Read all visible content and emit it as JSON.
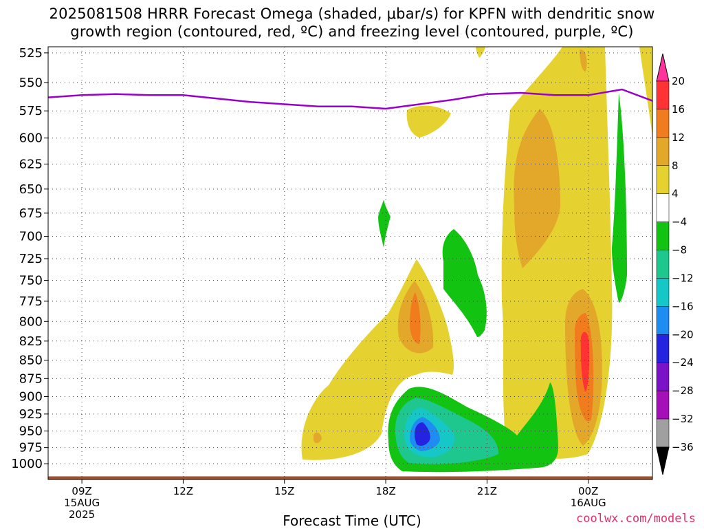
{
  "title_line1": "2025081508 HRRR Forecast Omega (shaded, μbar/s) for KPFN with dendritic snow",
  "title_line2": "growth region (contoured, red, ºC) and freezing level (contoured, purple, ºC)",
  "xlabel": "Forecast Time (UTC)",
  "credit": "coolwx.com/models",
  "chart_data": {
    "type": "heatmap",
    "title": "2025081508 HRRR Forecast Omega (shaded, μbar/s) for KPFN with dendritic snow growth region (contoured, red, ºC) and freezing level (contoured, purple, ºC)",
    "xlabel": "Forecast Time (UTC)",
    "ylabel": "",
    "y_axis_scale": "log-pressure (inverted)",
    "ylim": [
      1025,
      520
    ],
    "y_ticks": [
      525,
      550,
      575,
      600,
      625,
      650,
      675,
      700,
      725,
      750,
      775,
      800,
      825,
      850,
      875,
      900,
      925,
      950,
      975,
      1000
    ],
    "x_ticks": [
      {
        "hours": 1,
        "label": "09Z",
        "label2": "15AUG",
        "label3": "2025"
      },
      {
        "hours": 4,
        "label": "12Z",
        "label2": "",
        "label3": ""
      },
      {
        "hours": 7,
        "label": "15Z",
        "label2": "",
        "label3": ""
      },
      {
        "hours": 10,
        "label": "18Z",
        "label2": "",
        "label3": ""
      },
      {
        "hours": 13,
        "label": "21Z",
        "label2": "",
        "label3": ""
      },
      {
        "hours": 16,
        "label": "00Z",
        "label2": "16AUG",
        "label3": ""
      }
    ],
    "xlim_hours": [
      0,
      17.9
    ],
    "grid": true,
    "colorbar": {
      "levels": [
        "20",
        "16",
        "12",
        "8",
        "4",
        "−4",
        "−8",
        "−12",
        "−16",
        "−20",
        "−24",
        "−28",
        "−32",
        "−36"
      ],
      "colors": [
        "#ff3399",
        "#ff3333",
        "#f07c1e",
        "#e3a82a",
        "#e5d230",
        "#ffffff",
        "#12c312",
        "#1ec78e",
        "#16c7c7",
        "#1e8cf0",
        "#2424e0",
        "#7a12c8",
        "#a40fb8",
        "#a0a0a0",
        "#000000"
      ]
    },
    "omega_regions": [
      {
        "value": 4,
        "color": "#e5d230",
        "label": "yellow region, 16Z to 19Z near surface"
      },
      {
        "value": 12,
        "color": "#e3a82a",
        "label": "upper region 23Z"
      },
      {
        "value": 16,
        "color": "#ff3333",
        "label": "max near 00Z 850 mb"
      },
      {
        "value": -8,
        "color": "#12c312",
        "label": "green region 18Z-22Z near surface"
      },
      {
        "value": -24,
        "color": "#2424e0",
        "label": "min near 19Z 950 mb"
      }
    ],
    "series": [
      {
        "name": "freezing level",
        "color": "#9900cc",
        "points": [
          [
            0.0,
            563
          ],
          [
            1.0,
            561
          ],
          [
            2.0,
            560
          ],
          [
            3.0,
            561
          ],
          [
            4.0,
            561
          ],
          [
            5.0,
            564
          ],
          [
            6.0,
            567
          ],
          [
            7.0,
            569
          ],
          [
            8.0,
            571
          ],
          [
            9.0,
            571
          ],
          [
            10.0,
            573
          ],
          [
            11.0,
            569
          ],
          [
            12.0,
            565
          ],
          [
            13.0,
            560
          ],
          [
            14.0,
            559
          ],
          [
            15.0,
            561
          ],
          [
            16.0,
            561
          ],
          [
            17.0,
            556
          ],
          [
            17.9,
            566
          ]
        ]
      }
    ],
    "ground_color": "#a0522d"
  }
}
